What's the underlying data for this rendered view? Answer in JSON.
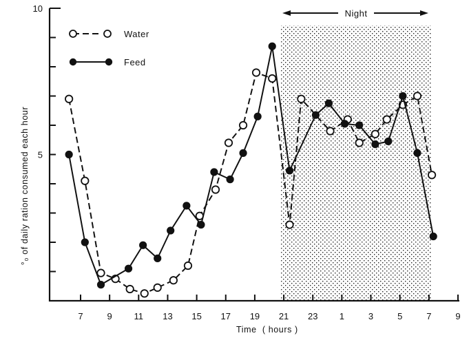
{
  "chart_data": {
    "type": "line",
    "title": "",
    "xlabel": "Time  ( hours )",
    "ylabel": "% of daily ration consumed each hour",
    "ylabel_prefix": "o/o",
    "ylim": [
      0,
      10
    ],
    "xlim": [
      5.5,
      33.2
    ],
    "grid": false,
    "y_ticks": [
      0,
      1,
      2,
      3,
      4,
      5,
      6,
      7,
      8,
      9,
      10
    ],
    "y_tick_labels": [
      {
        "value": 5,
        "label": "5"
      },
      {
        "value": 10,
        "label": "10"
      }
    ],
    "x_ticks": [
      {
        "value": 7,
        "label": "7"
      },
      {
        "value": 9,
        "label": "9"
      },
      {
        "value": 11,
        "label": "11"
      },
      {
        "value": 13,
        "label": "13"
      },
      {
        "value": 15,
        "label": "15"
      },
      {
        "value": 17,
        "label": "17"
      },
      {
        "value": 19,
        "label": "19"
      },
      {
        "value": 21,
        "label": "21"
      },
      {
        "value": 23,
        "label": "23"
      },
      {
        "value": 25,
        "label": "1"
      },
      {
        "value": 27,
        "label": "3"
      },
      {
        "value": 29,
        "label": "5"
      },
      {
        "value": 31,
        "label": "7"
      },
      {
        "value": 33,
        "label": "9"
      }
    ],
    "shaded_region": {
      "label": "Night",
      "x_start": 21.0,
      "x_end": 31.1
    },
    "legend": {
      "placement": "top-left",
      "entries": [
        "Water",
        "Feed"
      ]
    },
    "series": [
      {
        "name": "Water",
        "marker": "open-circle",
        "line": "dashed",
        "x": [
          6.2,
          7.3,
          8.4,
          9.4,
          10.4,
          11.4,
          12.3,
          13.4,
          14.4,
          15.2,
          16.3,
          17.2,
          18.2,
          19.1,
          20.2,
          21.4,
          22.2,
          24.2,
          25.4,
          26.2,
          27.3,
          28.1,
          29.2,
          30.2,
          31.2
        ],
        "values": [
          6.9,
          4.1,
          0.95,
          0.75,
          0.4,
          0.25,
          0.45,
          0.7,
          1.2,
          2.9,
          3.8,
          5.4,
          6.0,
          7.8,
          7.6,
          2.6,
          6.9,
          5.8,
          6.2,
          5.4,
          5.7,
          6.2,
          6.7,
          7.0,
          4.3
        ]
      },
      {
        "name": "Feed",
        "marker": "filled-circle",
        "line": "solid",
        "x": [
          6.2,
          7.3,
          8.4,
          10.3,
          11.3,
          12.3,
          13.2,
          14.3,
          15.3,
          16.2,
          17.3,
          18.2,
          19.2,
          20.2,
          21.4,
          23.2,
          24.1,
          25.2,
          26.2,
          27.3,
          28.2,
          29.2,
          30.2,
          31.3
        ],
        "values": [
          5.0,
          2.0,
          0.55,
          1.1,
          1.9,
          1.45,
          2.4,
          3.25,
          2.6,
          4.4,
          4.15,
          5.05,
          6.3,
          8.7,
          4.45,
          6.35,
          6.75,
          6.05,
          6.0,
          5.35,
          5.45,
          7.0,
          5.05,
          2.2
        ]
      }
    ]
  }
}
